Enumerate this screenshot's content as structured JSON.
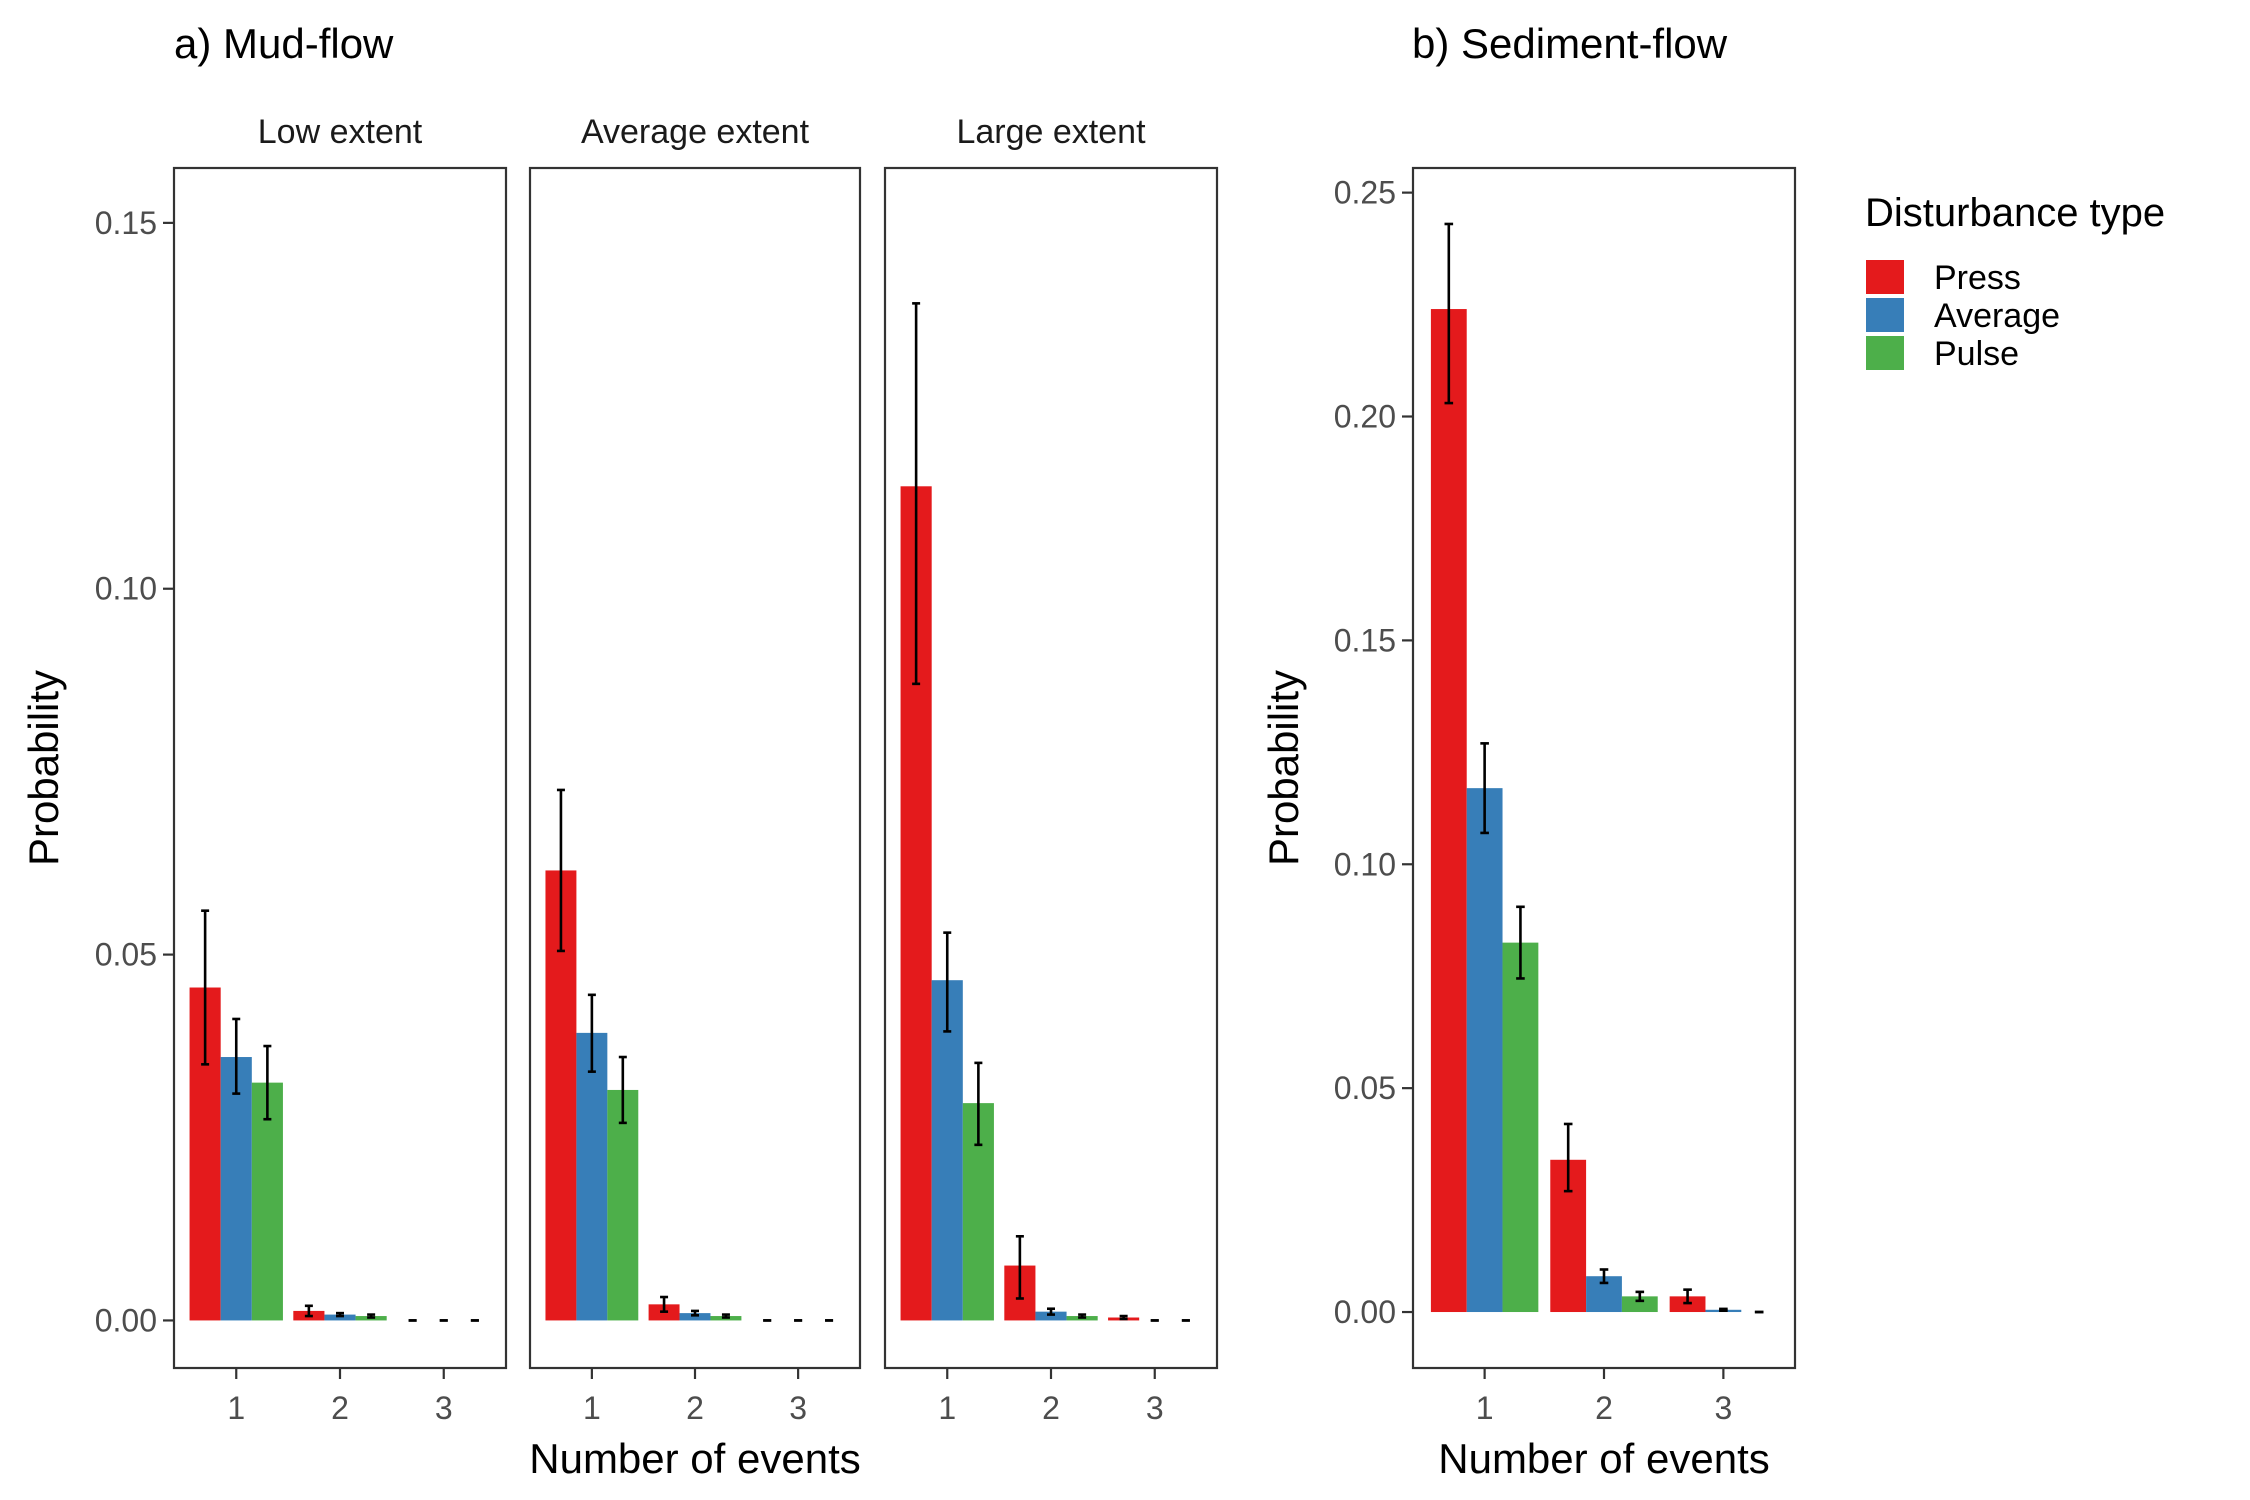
{
  "chart_data": [
    {
      "type": "bar",
      "title": "a) Mud-flow",
      "xlabel": "Number of events",
      "ylabel": "Probability",
      "ylim": [
        -0.0065,
        0.1575
      ],
      "yticks": [
        "0.00",
        "0.05",
        "0.10",
        "0.15"
      ],
      "categories": [
        "1",
        "2",
        "3"
      ],
      "grid": false,
      "facets": [
        {
          "label": "Low extent",
          "series": [
            {
              "name": "Press",
              "values": [
                0.0455,
                0.0013,
                0.0
              ],
              "lower": [
                0.035,
                0.0006,
                0.0
              ],
              "upper": [
                0.056,
                0.002,
                0.0
              ]
            },
            {
              "name": "Average",
              "values": [
                0.036,
                0.0008,
                0.0
              ],
              "lower": [
                0.031,
                0.0006,
                0.0
              ],
              "upper": [
                0.0412,
                0.001,
                0.0
              ]
            },
            {
              "name": "Pulse",
              "values": [
                0.0325,
                0.0006,
                0.0
              ],
              "lower": [
                0.0275,
                0.0004,
                0.0
              ],
              "upper": [
                0.0375,
                0.0008,
                0.0
              ]
            }
          ]
        },
        {
          "label": "Average extent",
          "series": [
            {
              "name": "Press",
              "values": [
                0.0615,
                0.0022,
                0.0
              ],
              "lower": [
                0.0505,
                0.0012,
                0.0
              ],
              "upper": [
                0.0725,
                0.0032,
                0.0
              ]
            },
            {
              "name": "Average",
              "values": [
                0.0393,
                0.001,
                0.0
              ],
              "lower": [
                0.034,
                0.0007,
                0.0
              ],
              "upper": [
                0.0445,
                0.0013,
                0.0
              ]
            },
            {
              "name": "Pulse",
              "values": [
                0.0315,
                0.0006,
                0.0
              ],
              "lower": [
                0.027,
                0.0004,
                0.0
              ],
              "upper": [
                0.036,
                0.0008,
                0.0
              ]
            }
          ]
        },
        {
          "label": "Large extent",
          "series": [
            {
              "name": "Press",
              "values": [
                0.114,
                0.0075,
                0.0004
              ],
              "lower": [
                0.087,
                0.003,
                0.0002
              ],
              "upper": [
                0.139,
                0.0115,
                0.0006
              ]
            },
            {
              "name": "Average",
              "values": [
                0.0465,
                0.0012,
                0.0
              ],
              "lower": [
                0.0395,
                0.0008,
                0.0
              ],
              "upper": [
                0.053,
                0.0016,
                0.0
              ]
            },
            {
              "name": "Pulse",
              "values": [
                0.0297,
                0.0006,
                0.0
              ],
              "lower": [
                0.024,
                0.0004,
                0.0
              ],
              "upper": [
                0.0352,
                0.0008,
                0.0
              ]
            }
          ]
        }
      ]
    },
    {
      "type": "bar",
      "title": "b) Sediment-flow",
      "xlabel": "Number of events",
      "ylabel": "Probability",
      "ylim": [
        -0.0125,
        0.2555
      ],
      "yticks": [
        "0.00",
        "0.05",
        "0.10",
        "0.15",
        "0.20",
        "0.25"
      ],
      "categories": [
        "1",
        "2",
        "3"
      ],
      "grid": false,
      "series": [
        {
          "name": "Press",
          "values": [
            0.224,
            0.034,
            0.0035
          ],
          "lower": [
            0.203,
            0.027,
            0.002
          ],
          "upper": [
            0.243,
            0.042,
            0.005
          ]
        },
        {
          "name": "Average",
          "values": [
            0.117,
            0.008,
            0.0005
          ],
          "lower": [
            0.107,
            0.0065,
            0.0003
          ],
          "upper": [
            0.127,
            0.0095,
            0.0007
          ]
        },
        {
          "name": "Pulse",
          "values": [
            0.0825,
            0.0035,
            0.0
          ],
          "lower": [
            0.0745,
            0.0025,
            0.0
          ],
          "upper": [
            0.0905,
            0.0045,
            0.0
          ]
        }
      ]
    }
  ],
  "legend": {
    "title": "Disturbance type",
    "position": "right",
    "items": [
      {
        "label": "Press",
        "color": "#E41A1C"
      },
      {
        "label": "Average",
        "color": "#377EB8"
      },
      {
        "label": "Pulse",
        "color": "#4DAF4A"
      }
    ]
  }
}
